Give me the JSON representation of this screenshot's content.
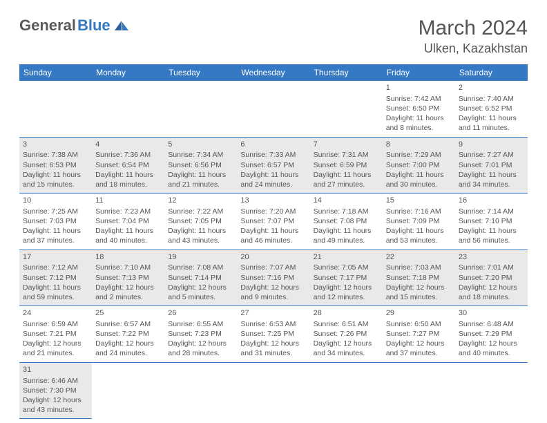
{
  "header": {
    "logo_dark": "General",
    "logo_blue": "Blue",
    "month_title": "March 2024",
    "location": "Ulken, Kazakhstan"
  },
  "calendar": {
    "header_bg": "#3578c4",
    "header_fg": "#ffffff",
    "row_alt_bg": "#e9e9e9",
    "border_color": "#3578c4",
    "text_color": "#555555",
    "day_labels": [
      "Sunday",
      "Monday",
      "Tuesday",
      "Wednesday",
      "Thursday",
      "Friday",
      "Saturday"
    ],
    "weeks": [
      [
        null,
        null,
        null,
        null,
        null,
        {
          "n": "1",
          "sr": "Sunrise: 7:42 AM",
          "ss": "Sunset: 6:50 PM",
          "dl": "Daylight: 11 hours and 8 minutes."
        },
        {
          "n": "2",
          "sr": "Sunrise: 7:40 AM",
          "ss": "Sunset: 6:52 PM",
          "dl": "Daylight: 11 hours and 11 minutes."
        }
      ],
      [
        {
          "n": "3",
          "sr": "Sunrise: 7:38 AM",
          "ss": "Sunset: 6:53 PM",
          "dl": "Daylight: 11 hours and 15 minutes."
        },
        {
          "n": "4",
          "sr": "Sunrise: 7:36 AM",
          "ss": "Sunset: 6:54 PM",
          "dl": "Daylight: 11 hours and 18 minutes."
        },
        {
          "n": "5",
          "sr": "Sunrise: 7:34 AM",
          "ss": "Sunset: 6:56 PM",
          "dl": "Daylight: 11 hours and 21 minutes."
        },
        {
          "n": "6",
          "sr": "Sunrise: 7:33 AM",
          "ss": "Sunset: 6:57 PM",
          "dl": "Daylight: 11 hours and 24 minutes."
        },
        {
          "n": "7",
          "sr": "Sunrise: 7:31 AM",
          "ss": "Sunset: 6:59 PM",
          "dl": "Daylight: 11 hours and 27 minutes."
        },
        {
          "n": "8",
          "sr": "Sunrise: 7:29 AM",
          "ss": "Sunset: 7:00 PM",
          "dl": "Daylight: 11 hours and 30 minutes."
        },
        {
          "n": "9",
          "sr": "Sunrise: 7:27 AM",
          "ss": "Sunset: 7:01 PM",
          "dl": "Daylight: 11 hours and 34 minutes."
        }
      ],
      [
        {
          "n": "10",
          "sr": "Sunrise: 7:25 AM",
          "ss": "Sunset: 7:03 PM",
          "dl": "Daylight: 11 hours and 37 minutes."
        },
        {
          "n": "11",
          "sr": "Sunrise: 7:23 AM",
          "ss": "Sunset: 7:04 PM",
          "dl": "Daylight: 11 hours and 40 minutes."
        },
        {
          "n": "12",
          "sr": "Sunrise: 7:22 AM",
          "ss": "Sunset: 7:05 PM",
          "dl": "Daylight: 11 hours and 43 minutes."
        },
        {
          "n": "13",
          "sr": "Sunrise: 7:20 AM",
          "ss": "Sunset: 7:07 PM",
          "dl": "Daylight: 11 hours and 46 minutes."
        },
        {
          "n": "14",
          "sr": "Sunrise: 7:18 AM",
          "ss": "Sunset: 7:08 PM",
          "dl": "Daylight: 11 hours and 49 minutes."
        },
        {
          "n": "15",
          "sr": "Sunrise: 7:16 AM",
          "ss": "Sunset: 7:09 PM",
          "dl": "Daylight: 11 hours and 53 minutes."
        },
        {
          "n": "16",
          "sr": "Sunrise: 7:14 AM",
          "ss": "Sunset: 7:10 PM",
          "dl": "Daylight: 11 hours and 56 minutes."
        }
      ],
      [
        {
          "n": "17",
          "sr": "Sunrise: 7:12 AM",
          "ss": "Sunset: 7:12 PM",
          "dl": "Daylight: 11 hours and 59 minutes."
        },
        {
          "n": "18",
          "sr": "Sunrise: 7:10 AM",
          "ss": "Sunset: 7:13 PM",
          "dl": "Daylight: 12 hours and 2 minutes."
        },
        {
          "n": "19",
          "sr": "Sunrise: 7:08 AM",
          "ss": "Sunset: 7:14 PM",
          "dl": "Daylight: 12 hours and 5 minutes."
        },
        {
          "n": "20",
          "sr": "Sunrise: 7:07 AM",
          "ss": "Sunset: 7:16 PM",
          "dl": "Daylight: 12 hours and 9 minutes."
        },
        {
          "n": "21",
          "sr": "Sunrise: 7:05 AM",
          "ss": "Sunset: 7:17 PM",
          "dl": "Daylight: 12 hours and 12 minutes."
        },
        {
          "n": "22",
          "sr": "Sunrise: 7:03 AM",
          "ss": "Sunset: 7:18 PM",
          "dl": "Daylight: 12 hours and 15 minutes."
        },
        {
          "n": "23",
          "sr": "Sunrise: 7:01 AM",
          "ss": "Sunset: 7:20 PM",
          "dl": "Daylight: 12 hours and 18 minutes."
        }
      ],
      [
        {
          "n": "24",
          "sr": "Sunrise: 6:59 AM",
          "ss": "Sunset: 7:21 PM",
          "dl": "Daylight: 12 hours and 21 minutes."
        },
        {
          "n": "25",
          "sr": "Sunrise: 6:57 AM",
          "ss": "Sunset: 7:22 PM",
          "dl": "Daylight: 12 hours and 24 minutes."
        },
        {
          "n": "26",
          "sr": "Sunrise: 6:55 AM",
          "ss": "Sunset: 7:23 PM",
          "dl": "Daylight: 12 hours and 28 minutes."
        },
        {
          "n": "27",
          "sr": "Sunrise: 6:53 AM",
          "ss": "Sunset: 7:25 PM",
          "dl": "Daylight: 12 hours and 31 minutes."
        },
        {
          "n": "28",
          "sr": "Sunrise: 6:51 AM",
          "ss": "Sunset: 7:26 PM",
          "dl": "Daylight: 12 hours and 34 minutes."
        },
        {
          "n": "29",
          "sr": "Sunrise: 6:50 AM",
          "ss": "Sunset: 7:27 PM",
          "dl": "Daylight: 12 hours and 37 minutes."
        },
        {
          "n": "30",
          "sr": "Sunrise: 6:48 AM",
          "ss": "Sunset: 7:29 PM",
          "dl": "Daylight: 12 hours and 40 minutes."
        }
      ],
      [
        {
          "n": "31",
          "sr": "Sunrise: 6:46 AM",
          "ss": "Sunset: 7:30 PM",
          "dl": "Daylight: 12 hours and 43 minutes."
        },
        null,
        null,
        null,
        null,
        null,
        null
      ]
    ]
  }
}
